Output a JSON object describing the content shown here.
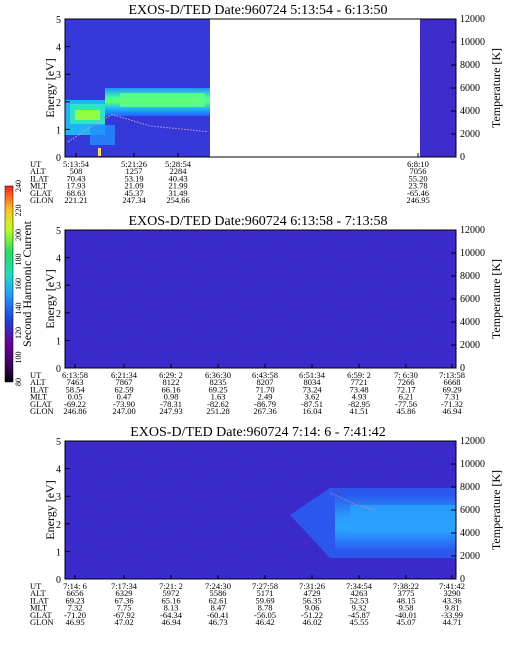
{
  "chart_data": [
    {
      "type": "heatmap",
      "title": "EXOS-D/TED   Date:960724   5:13:54 - 6:13:50",
      "ylabel": "Energy [eV]",
      "y2label": "Temperature [K]",
      "ylim": [
        0,
        5
      ],
      "y2lim": [
        0,
        12000
      ],
      "yticks": [
        "0",
        "1",
        "2",
        "3",
        "4",
        "5"
      ],
      "y2ticks": [
        "0",
        "2000",
        "4000",
        "6000",
        "8000",
        "10000",
        "12000"
      ],
      "ephemeris_labels": [
        "UT",
        "ALT",
        "ILAT",
        "MLT",
        "GLAT",
        "GLON"
      ],
      "ephemeris": [
        [
          "5:13:54",
          "508",
          "70.43",
          "17.93",
          "68.63",
          "221.21"
        ],
        [
          "5:21:26",
          "1257",
          "53.19",
          "21.09",
          "45.37",
          "247.34"
        ],
        [
          "5:28:54",
          "2284",
          "40.43",
          "21.99",
          "31.49",
          "254.66"
        ],
        [
          "6:8:10",
          "7056",
          "55.20",
          "23.78",
          "-65.46",
          "246.95"
        ]
      ],
      "series": [
        {
          "name": "",
          "values": [
            {
              "x": "5:13:54",
              "y": 1300
            },
            {
              "x": "5:17:00",
              "y": 2600
            },
            {
              "x": "5:21:26",
              "y": 3700
            },
            {
              "x": "5:25:00",
              "y": 2700
            },
            {
              "x": "5:28:54",
              "y": 2200
            }
          ]
        }
      ]
    },
    {
      "type": "heatmap",
      "title": "EXOS-D/TED   Date:960724   6:13:58 - 7:13:58",
      "ylabel": "Energy [eV]",
      "y2label": "Temperature [K]",
      "ylim": [
        0,
        5
      ],
      "y2lim": [
        0,
        12000
      ],
      "yticks": [
        "0",
        "1",
        "2",
        "3",
        "4",
        "5"
      ],
      "y2ticks": [
        "0",
        "2000",
        "4000",
        "6000",
        "8000",
        "10000",
        "12000"
      ],
      "ephemeris_labels": [
        "UT",
        "ALT",
        "ILAT",
        "MLT",
        "GLAT",
        "GLON"
      ],
      "ephemeris": [
        [
          "6:13:58",
          "7463",
          "58.54",
          "0.05",
          "-69.22",
          "246.86"
        ],
        [
          "6:21:34",
          "7867",
          "62.59",
          "0.47",
          "-73.90",
          "247.00"
        ],
        [
          "6:29: 2",
          "8122",
          "66.16",
          "0.98",
          "-78.31",
          "247.93"
        ],
        [
          "6:36:30",
          "8235",
          "69.25",
          "1.63",
          "-82.62",
          "251.28"
        ],
        [
          "6:43:58",
          "8207",
          "71.70",
          "2.49",
          "-86.79",
          "267.36"
        ],
        [
          "6:51:34",
          "8034",
          "73.24",
          "3.62",
          "-87.51",
          "16.04"
        ],
        [
          "6:59: 2",
          "7721",
          "73.48",
          "4.93",
          "-82.95",
          "41.51"
        ],
        [
          "7: 6:30",
          "7266",
          "72.17",
          "6.21",
          "-77.56",
          "45.86"
        ],
        [
          "7:13:58",
          "6668",
          "69.29",
          "7.31",
          "-71.32",
          "46.94"
        ]
      ]
    },
    {
      "type": "heatmap",
      "title": "EXOS-D/TED   Date:960724   7:14: 6 - 7:41:42",
      "ylabel": "Energy [eV]",
      "y2label": "Temperature [K]",
      "ylim": [
        0,
        5
      ],
      "y2lim": [
        0,
        12000
      ],
      "yticks": [
        "0",
        "1",
        "2",
        "3",
        "4",
        "5"
      ],
      "y2ticks": [
        "0",
        "2000",
        "4000",
        "6000",
        "8000",
        "10000",
        "12000"
      ],
      "ephemeris_labels": [
        "UT",
        "ALT",
        "ILAT",
        "MLT",
        "GLAT",
        "GLON"
      ],
      "ephemeris": [
        [
          "7:14: 6",
          "6656",
          "69.23",
          "7.32",
          "-71.20",
          "46.95"
        ],
        [
          "7:17:34",
          "6329",
          "67.36",
          "7.75",
          "-67.92",
          "47.02"
        ],
        [
          "7:21: 2",
          "5972",
          "65.16",
          "8.13",
          "-64.34",
          "46.94"
        ],
        [
          "7:24:30",
          "5586",
          "62.61",
          "8.47",
          "-60.41",
          "46.73"
        ],
        [
          "7:27:58",
          "5171",
          "59.69",
          "8.78",
          "-56.05",
          "46.42"
        ],
        [
          "7:31:26",
          "4729",
          "56.35",
          "9.06",
          "-51.22",
          "46.02"
        ],
        [
          "7:34:54",
          "4263",
          "52.53",
          "9.32",
          "-45.87",
          "45.55"
        ],
        [
          "7:38:22",
          "3775",
          "48.15",
          "9.58",
          "-40.01",
          "45.07"
        ],
        [
          "7:41:42",
          "3290",
          "43.36",
          "9.81",
          "-33.99",
          "44.71"
        ]
      ],
      "series": [
        {
          "name": "",
          "values": [
            {
              "x": "7:33:00",
              "y": 7500
            },
            {
              "x": "7:35:00",
              "y": 6500
            },
            {
              "x": "7:36:30",
              "y": 6000
            }
          ]
        }
      ]
    }
  ],
  "colorbar": {
    "label": "Second Harmonic Current",
    "ticks": [
      "80",
      "100",
      "120",
      "140",
      "160",
      "180",
      "200",
      "220",
      "240"
    ],
    "colors": [
      "#000000",
      "#3a0060",
      "#6a00a0",
      "#2a1aa8",
      "#2040e0",
      "#2080ff",
      "#20c0ff",
      "#20e0c0",
      "#20e060",
      "#60ff20",
      "#c0ff20",
      "#ffe020",
      "#ff9020",
      "#ff2020"
    ]
  }
}
